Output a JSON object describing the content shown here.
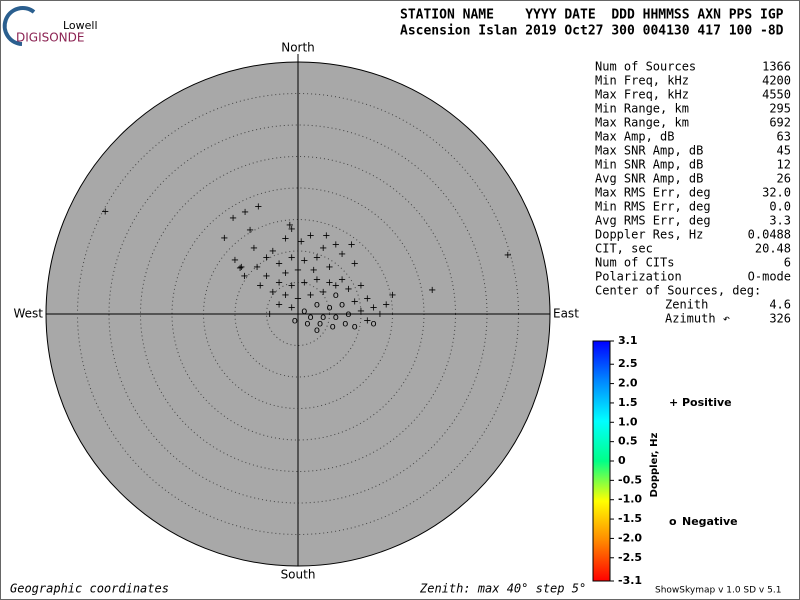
{
  "logo": {
    "top": "Lowell",
    "bottom": "DIGISONDE"
  },
  "header": [
    "STATION NAME    YYYY DATE  DDD HHMMSS AXN PPS IGP",
    "Ascension Islan 2019 Oct27 300 004130 417 100 -8D"
  ],
  "stats": [
    [
      "Num of Sources",
      "1366"
    ],
    [
      "Min Freq, kHz",
      "4200"
    ],
    [
      "Max Freq, kHz",
      "4550"
    ],
    [
      "Min Range, km",
      "295"
    ],
    [
      "Max Range, km",
      "692"
    ],
    [
      "Max Amp, dB",
      "63"
    ],
    [
      "Max SNR Amp, dB",
      "45"
    ],
    [
      "Min SNR Amp, dB",
      "12"
    ],
    [
      "Avg SNR Amp, dB",
      "26"
    ],
    [
      "Max RMS Err, deg",
      "32.0"
    ],
    [
      "Min RMS Err, deg",
      "0.0"
    ],
    [
      "Avg RMS Err, deg",
      "3.3"
    ],
    [
      "Doppler Res, Hz",
      "0.0488"
    ],
    [
      "CIT, sec",
      "20.48"
    ],
    [
      "Num of CITs",
      "6"
    ],
    [
      "Polarization",
      "O-mode"
    ]
  ],
  "center": {
    "title": "Center of Sources, deg:",
    "rows": [
      [
        "Zenith",
        "4.6"
      ],
      [
        "Azimuth ↶",
        "326"
      ]
    ]
  },
  "footer": {
    "left": "Geographic coordinates",
    "middle": "Zenith: max 40°  step 5°",
    "right": "ShowSkymap v 1.0   SD v 5.1"
  },
  "chart_data": {
    "type": "skymap",
    "directions": {
      "north": "North",
      "south": "South",
      "east": "East",
      "west": "West"
    },
    "rlim": [
      0,
      40
    ],
    "rticks": [
      5,
      10,
      15,
      20,
      25,
      30,
      35
    ],
    "plot_color": "#a8a8a8",
    "colorbar": {
      "label": "Doppler, Hz",
      "clim": [
        -3.1,
        3.1
      ],
      "ticks": [
        3.1,
        2.5,
        2.0,
        1.5,
        1.0,
        0.5,
        0,
        -0.5,
        -1.0,
        -1.5,
        -2.0,
        -2.5,
        -3.1
      ],
      "tick_labels": [
        "3.1",
        "2.5",
        "2.0",
        "1.5",
        "1.0",
        "0.5",
        "0",
        "-0.5",
        "-1.0",
        "-1.5",
        "-2.0",
        "-2.5",
        "-3.1"
      ],
      "colormap": [
        "#ff0000",
        "#ff8800",
        "#ffff00",
        "#00ff88",
        "#00ffff",
        "#0088ff",
        "#0000ff"
      ]
    },
    "legend": [
      {
        "marker": "+",
        "name": "Positive",
        "color": "#0000cc"
      },
      {
        "marker": "o",
        "name": "Negative",
        "color": "#cc0000"
      }
    ],
    "x": [
      -30.6,
      33.3,
      21.3,
      -6.3,
      -8.4,
      -10.3,
      -11.7,
      -7.6,
      -1.3,
      -9.2,
      -10,
      -2,
      0.5,
      2,
      -4,
      4,
      6,
      -1,
      1,
      -3,
      3,
      7,
      8.5,
      -5,
      0,
      -2,
      2.5,
      5,
      -6.5,
      9,
      -1,
      4.5,
      -7,
      1,
      3,
      5,
      7,
      -1,
      -3,
      -5,
      2,
      4,
      6,
      8,
      10,
      0,
      -2,
      -4,
      3,
      5,
      7,
      9,
      11,
      1,
      2,
      4,
      6,
      8,
      10,
      12,
      1.5,
      3.5,
      5.5,
      7.5,
      9,
      3,
      -1,
      -3,
      -4.5,
      11,
      13,
      14,
      6,
      -6,
      -8.5,
      -9,
      15,
      12,
      -0.5
    ],
    "y": [
      16.3,
      9.4,
      3.8,
      17.1,
      16.2,
      15.2,
      12.1,
      13.3,
      14.1,
      7.3,
      8.6,
      12,
      11.5,
      12.5,
      10,
      10.5,
      11,
      9,
      8.5,
      8,
      9,
      9.5,
      11,
      9,
      7,
      6.5,
      7,
      7.5,
      7.5,
      8,
      13.5,
      12.5,
      10.5,
      5,
      5.5,
      5,
      5.5,
      4.5,
      5,
      6,
      3,
      3.5,
      3,
      4,
      4.5,
      2.5,
      3,
      3.5,
      1.5,
      1,
      1.5,
      2,
      2.5,
      0.5,
      -0.5,
      -0.5,
      -0.5,
      0,
      0.5,
      1,
      -1.5,
      -1.5,
      -2,
      -1.5,
      -2,
      -2.5,
      1,
      1.5,
      0,
      -1,
      0,
      1.5,
      4.5,
      4.5,
      6,
      7.5,
      3,
      -1.5,
      -1
    ],
    "doppler": [
      1.3,
      1.0,
      0.5,
      1.8,
      1.5,
      1.4,
      1.0,
      1.6,
      1.7,
      0.6,
      0.7,
      1.9,
      1.8,
      1.6,
      1.5,
      1.4,
      1.2,
      1.7,
      1.5,
      1.3,
      1.2,
      1.0,
      0.9,
      1.1,
      1.4,
      1.2,
      1.1,
      0.9,
      0.8,
      0.7,
      1.8,
      1.3,
      0.9,
      0.5,
      0.4,
      0.3,
      0.2,
      0.4,
      0.5,
      0.6,
      0.1,
      0,
      -0.1,
      0.1,
      0.2,
      0.2,
      0.3,
      0.4,
      -0.2,
      -0.3,
      -0.1,
      0,
      0.1,
      -0.1,
      -0.3,
      -0.4,
      -0.2,
      -0.1,
      0,
      0.1,
      -0.2,
      -0.3,
      -0.5,
      -0.2,
      -0.1,
      -0.4,
      0.2,
      0.3,
      0.1,
      0,
      0.2,
      0.3,
      0.2,
      0.5,
      0.6,
      0.8,
      0.4,
      -0.1,
      -0.1
    ]
  }
}
